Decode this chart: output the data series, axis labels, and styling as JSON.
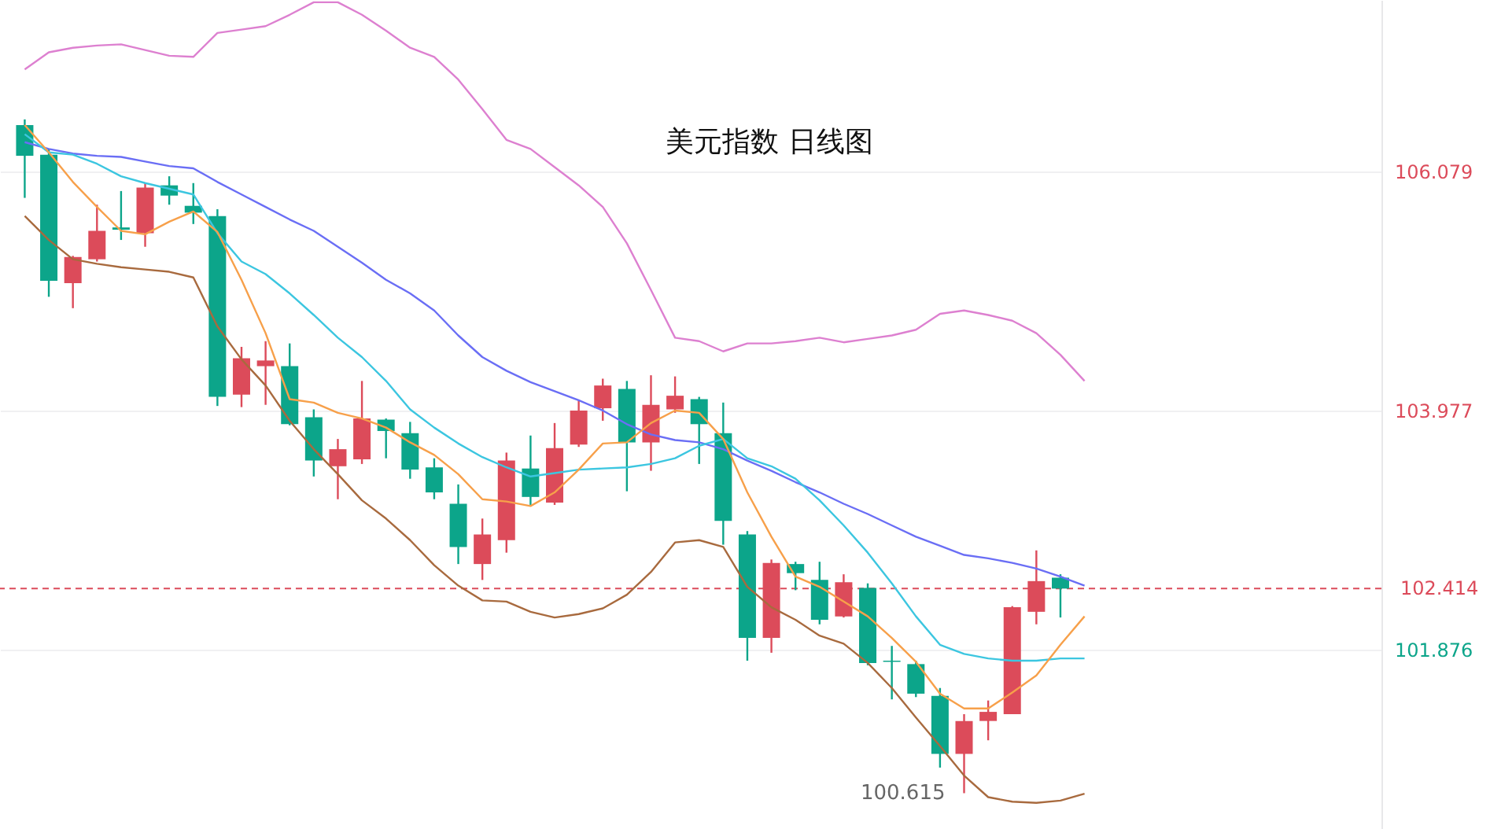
{
  "chart_data": {
    "type": "candlestick",
    "title": "美元指数 日线图",
    "categories": [
      null,
      null,
      null,
      null,
      null,
      null,
      null,
      null,
      null,
      null,
      null,
      null,
      null,
      null,
      null,
      null,
      null,
      null,
      null,
      null,
      null,
      null,
      null,
      null,
      null,
      null,
      null,
      null,
      null,
      null,
      null,
      null,
      null,
      null,
      null,
      null,
      null,
      null,
      null,
      null,
      null,
      null,
      null,
      null,
      null
    ],
    "colors": [
      "#0ca58a",
      "#0ca58a",
      "#dc4b5a",
      "#dc4b5a",
      "#0ca58a",
      "#dc4b5a",
      "#0ca58a",
      "#0ca58a",
      "#0ca58a",
      "#dc4b5a",
      "#dc4b5a",
      "#0ca58a",
      "#0ca58a",
      "#dc4b5a",
      "#dc4b5a",
      "#0ca58a",
      "#0ca58a",
      "#0ca58a",
      "#0ca58a",
      "#dc4b5a",
      "#dc4b5a",
      "#0ca58a",
      "#dc4b5a",
      "#dc4b5a",
      "#dc4b5a",
      "#0ca58a",
      "#dc4b5a",
      "#dc4b5a",
      "#0ca58a",
      "#0ca58a",
      "#0ca58a",
      "#dc4b5a",
      "#0ca58a",
      "#0ca58a",
      "#dc4b5a",
      "#0ca58a",
      "#0ca58a",
      "#0ca58a",
      "#0ca58a",
      "#dc4b5a",
      "#dc4b5a",
      "#dc4b5a",
      "#dc4b5a",
      "#0ca58a",
      null
    ],
    "ohlc": [
      [
        106.49,
        106.54,
        105.85,
        106.22
      ],
      [
        106.23,
        106.28,
        104.98,
        105.12
      ],
      [
        105.1,
        105.34,
        104.88,
        105.33
      ],
      [
        105.31,
        105.79,
        105.29,
        105.56
      ],
      [
        105.59,
        105.91,
        105.48,
        105.57
      ],
      [
        105.54,
        105.98,
        105.42,
        105.94
      ],
      [
        105.96,
        106.04,
        105.79,
        105.87
      ],
      [
        105.78,
        105.98,
        105.62,
        105.72
      ],
      [
        105.69,
        105.75,
        104.02,
        104.1
      ],
      [
        104.12,
        104.54,
        104.01,
        104.44
      ],
      [
        104.37,
        104.59,
        104.03,
        104.42
      ],
      [
        104.37,
        104.57,
        103.85,
        103.86
      ],
      [
        103.92,
        103.99,
        103.4,
        103.54
      ],
      [
        103.49,
        103.73,
        103.2,
        103.64
      ],
      [
        103.55,
        104.24,
        103.51,
        103.91
      ],
      [
        103.9,
        103.91,
        103.56,
        103.8
      ],
      [
        103.78,
        103.88,
        103.38,
        103.46
      ],
      [
        103.48,
        103.56,
        103.2,
        103.26
      ],
      [
        103.16,
        103.33,
        102.63,
        102.78
      ],
      [
        102.63,
        103.03,
        102.49,
        102.89
      ],
      [
        102.84,
        103.61,
        102.73,
        103.54
      ],
      [
        103.47,
        103.76,
        103.15,
        103.22
      ],
      [
        103.17,
        103.87,
        103.15,
        103.65
      ],
      [
        103.68,
        104.07,
        103.66,
        103.98
      ],
      [
        104.0,
        104.26,
        103.89,
        104.2
      ],
      [
        104.17,
        104.24,
        103.27,
        103.7
      ],
      [
        103.7,
        104.29,
        103.45,
        104.03
      ],
      [
        103.99,
        104.28,
        103.96,
        104.11
      ],
      [
        104.08,
        104.1,
        103.51,
        103.86
      ],
      [
        103.78,
        104.05,
        102.8,
        103.01
      ],
      [
        102.89,
        102.92,
        101.78,
        101.98
      ],
      [
        101.98,
        102.67,
        101.85,
        102.64
      ],
      [
        102.63,
        102.65,
        102.4,
        102.55
      ],
      [
        102.49,
        102.65,
        102.1,
        102.14
      ],
      [
        102.17,
        102.54,
        102.16,
        102.47
      ],
      [
        102.42,
        102.46,
        101.74,
        101.76
      ],
      [
        101.78,
        101.91,
        101.44,
        101.77
      ],
      [
        101.75,
        101.78,
        101.46,
        101.49
      ],
      [
        101.47,
        101.54,
        100.84,
        100.96
      ],
      [
        100.96,
        101.31,
        100.615,
        101.25
      ],
      [
        101.25,
        101.43,
        101.08,
        101.33
      ],
      [
        101.31,
        102.26,
        101.31,
        102.25
      ],
      [
        102.21,
        102.75,
        102.1,
        102.48
      ],
      [
        102.51,
        102.54,
        102.16,
        102.414
      ],
      null
    ],
    "series": [
      {
        "type": "line",
        "color": "#dd80d0",
        "values": [
          106.98,
          107.13,
          107.17,
          107.19,
          107.2,
          107.15,
          107.1,
          107.09,
          107.3,
          107.33,
          107.36,
          107.46,
          107.57,
          107.57,
          107.46,
          107.32,
          107.17,
          107.09,
          106.89,
          106.63,
          106.36,
          106.28,
          106.12,
          105.96,
          105.77,
          105.45,
          105.04,
          104.62,
          104.59,
          104.5,
          104.57,
          104.57,
          104.59,
          104.62,
          104.58,
          104.61,
          104.64,
          104.69,
          104.83,
          104.86,
          104.82,
          104.77,
          104.66,
          104.47,
          104.24
        ]
      },
      {
        "type": "line",
        "color": "#a86a3e",
        "values": [
          105.69,
          105.48,
          105.31,
          105.27,
          105.24,
          105.22,
          105.2,
          105.15,
          104.72,
          104.43,
          104.2,
          103.89,
          103.64,
          103.42,
          103.19,
          103.03,
          102.84,
          102.62,
          102.44,
          102.31,
          102.3,
          102.21,
          102.16,
          102.19,
          102.24,
          102.36,
          102.56,
          102.82,
          102.84,
          102.78,
          102.43,
          102.25,
          102.14,
          102.0,
          101.93,
          101.76,
          101.54,
          101.28,
          101.03,
          100.77,
          100.58,
          100.54,
          100.53,
          100.55,
          100.61
        ]
      },
      {
        "type": "line",
        "color": "#6a6ef5",
        "values": [
          106.34,
          106.28,
          106.24,
          106.22,
          106.21,
          106.17,
          106.13,
          106.11,
          105.99,
          105.88,
          105.77,
          105.66,
          105.56,
          105.42,
          105.28,
          105.13,
          105.01,
          104.86,
          104.64,
          104.45,
          104.33,
          104.23,
          104.15,
          104.07,
          103.98,
          103.86,
          103.77,
          103.72,
          103.7,
          103.64,
          103.54,
          103.45,
          103.35,
          103.26,
          103.16,
          103.07,
          102.97,
          102.87,
          102.79,
          102.71,
          102.68,
          102.64,
          102.59,
          102.52,
          102.44
        ]
      },
      {
        "type": "line",
        "color": "#3cc6e0",
        "values": [
          106.41,
          106.25,
          106.23,
          106.15,
          106.04,
          105.98,
          105.93,
          105.88,
          105.54,
          105.29,
          105.18,
          105.01,
          104.82,
          104.62,
          104.45,
          104.24,
          103.99,
          103.83,
          103.69,
          103.57,
          103.48,
          103.4,
          103.43,
          103.46,
          103.47,
          103.48,
          103.51,
          103.56,
          103.67,
          103.73,
          103.56,
          103.49,
          103.38,
          103.19,
          102.97,
          102.73,
          102.46,
          102.17,
          101.92,
          101.84,
          101.8,
          101.78,
          101.78,
          101.8,
          101.8
        ]
      },
      {
        "type": "line",
        "color": "#f7a04a",
        "values": [
          106.49,
          106.25,
          105.99,
          105.77,
          105.56,
          105.53,
          105.64,
          105.73,
          105.55,
          105.13,
          104.66,
          104.08,
          104.05,
          103.96,
          103.91,
          103.83,
          103.7,
          103.59,
          103.42,
          103.2,
          103.18,
          103.14,
          103.26,
          103.46,
          103.69,
          103.7,
          103.87,
          103.98,
          103.96,
          103.73,
          103.26,
          102.87,
          102.52,
          102.43,
          102.3,
          102.17,
          101.98,
          101.77,
          101.49,
          101.36,
          101.36,
          101.5,
          101.65,
          101.92,
          102.17
        ]
      }
    ],
    "ylim": [
      100.3,
      107.59
    ],
    "yticks": [
      106.079,
      103.977,
      101.876
    ],
    "grid": "y",
    "ref_lines": [
      {
        "axis": "y",
        "value": 102.414,
        "label": "102.414",
        "color": "#dc4b5a",
        "line_style": "dashed"
      }
    ],
    "annotations": [
      "100.615"
    ]
  }
}
